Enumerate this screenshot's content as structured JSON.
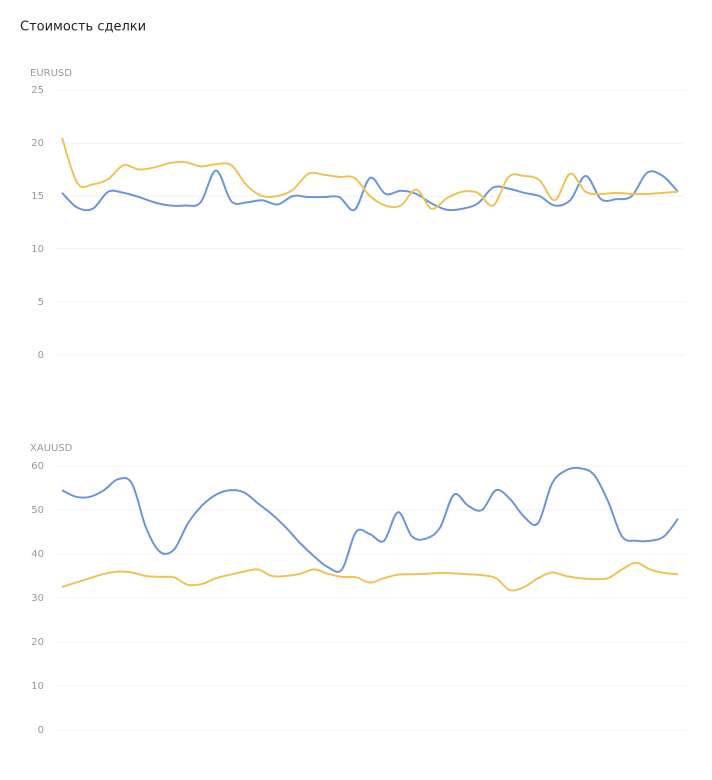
{
  "page_title": "Стоимость сделки",
  "chart_data": [
    {
      "type": "line",
      "title": "EURUSD",
      "ylim": [
        0,
        25
      ],
      "yticks": [
        0,
        5,
        10,
        15,
        20,
        25
      ],
      "grid": true,
      "series": [
        {
          "color": "#6b96d8",
          "values": [
            15.3,
            13.9,
            13.8,
            15.4,
            15.3,
            14.9,
            14.4,
            14.1,
            14.1,
            14.4,
            17.4,
            14.5,
            14.4,
            14.6,
            14.2,
            15.0,
            14.9,
            14.9,
            14.9,
            13.7,
            16.7,
            15.2,
            15.5,
            15.2,
            14.3,
            13.7,
            13.8,
            14.3,
            15.8,
            15.7,
            15.3,
            15.0,
            14.1,
            14.6,
            16.9,
            14.7,
            14.7,
            15.0,
            17.2,
            16.9,
            15.4
          ]
        },
        {
          "color": "#f0c358",
          "values": [
            20.5,
            16.2,
            16.1,
            16.6,
            17.9,
            17.5,
            17.7,
            18.1,
            18.2,
            17.8,
            18.0,
            17.9,
            16.0,
            15.0,
            15.0,
            15.6,
            17.1,
            17.0,
            16.8,
            16.7,
            15.0,
            14.1,
            14.1,
            15.6,
            13.8,
            14.8,
            15.4,
            15.3,
            14.1,
            16.8,
            16.9,
            16.5,
            14.6,
            17.1,
            15.4,
            15.2,
            15.3,
            15.2,
            15.2,
            15.3,
            15.4
          ]
        }
      ]
    },
    {
      "type": "line",
      "title": "XAUUSD",
      "ylim": [
        0,
        60
      ],
      "yticks": [
        0,
        10,
        20,
        30,
        40,
        50,
        60
      ],
      "grid": true,
      "series": [
        {
          "color": "#6b96d8",
          "values": [
            54.5,
            53,
            53,
            54.5,
            57,
            56,
            46,
            40.5,
            41,
            47,
            51,
            53.5,
            54.5,
            54,
            51.5,
            49,
            46,
            42.5,
            39.5,
            37,
            36.5,
            45,
            44.5,
            43,
            49.5,
            44,
            43.5,
            46,
            53.5,
            51,
            50,
            54.5,
            52.5,
            48.5,
            47,
            56,
            59,
            59.5,
            58,
            52,
            44,
            43,
            43,
            44,
            48
          ]
        },
        {
          "color": "#f0c358",
          "values": [
            32.5,
            33.5,
            34.5,
            35.5,
            36,
            35.8,
            35,
            34.8,
            34.7,
            33,
            33.2,
            34.5,
            35.3,
            36,
            36.5,
            35,
            35,
            35.5,
            36.5,
            35.5,
            34.8,
            34.7,
            33.5,
            34.5,
            35.3,
            35.4,
            35.5,
            35.7,
            35.6,
            35.4,
            35.2,
            34.5,
            31.8,
            32.5,
            34.5,
            35.8,
            35,
            34.5,
            34.3,
            34.5,
            36.5,
            38,
            36.5,
            35.7,
            35.4
          ]
        }
      ]
    }
  ]
}
